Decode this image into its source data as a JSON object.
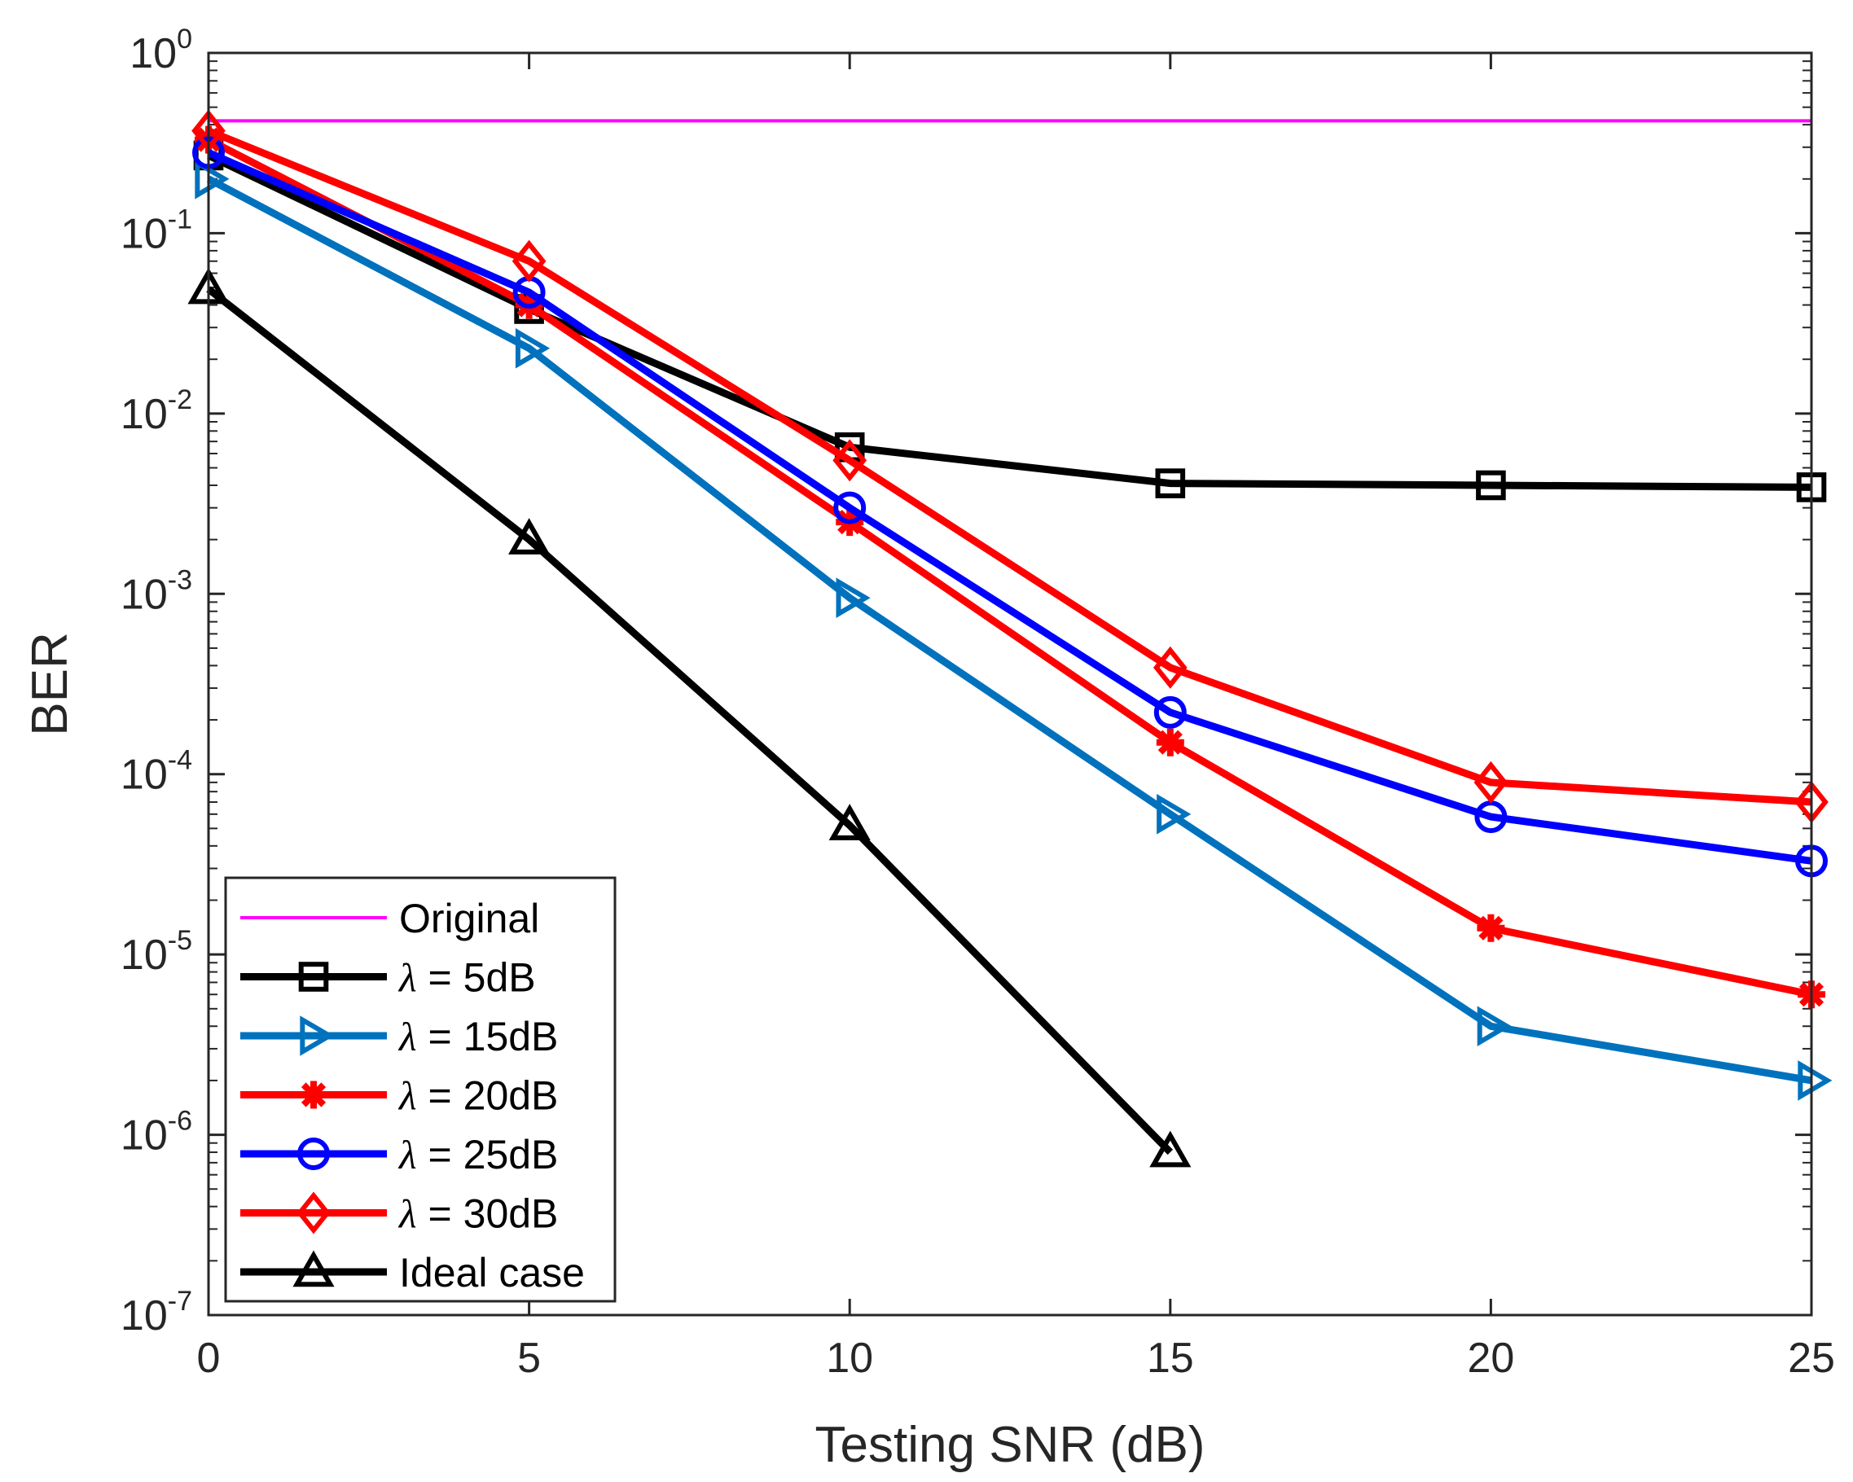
{
  "chart_data": {
    "type": "line",
    "title": "",
    "xlabel": "Testing SNR (dB)",
    "ylabel": "BER",
    "x": [
      0,
      5,
      10,
      15,
      20,
      25
    ],
    "xlim": [
      0,
      25
    ],
    "ylim": [
      1e-07,
      1
    ],
    "yscale": "log",
    "x_ticks": [
      "0",
      "5",
      "10",
      "15",
      "20",
      "25"
    ],
    "y_ticks": [
      {
        "base": "10",
        "exp": "0"
      },
      {
        "base": "10",
        "exp": "-1"
      },
      {
        "base": "10",
        "exp": "-2"
      },
      {
        "base": "10",
        "exp": "-3"
      },
      {
        "base": "10",
        "exp": "-4"
      },
      {
        "base": "10",
        "exp": "-5"
      },
      {
        "base": "10",
        "exp": "-6"
      },
      {
        "base": "10",
        "exp": "-7"
      }
    ],
    "legend_position": "bottom-left",
    "series": [
      {
        "name": "Original",
        "label": "Original",
        "color": "#ff00ff",
        "marker": "none",
        "width": "thin",
        "values": [
          0.42,
          0.42,
          0.42,
          0.42,
          0.42,
          0.42
        ]
      },
      {
        "name": "lambda-5dB",
        "lambda_symbol": "λ",
        "label_rest": " = 5dB",
        "color": "#000000",
        "marker": "square",
        "width": "thick",
        "values": [
          0.27,
          0.038,
          0.0065,
          0.0041,
          0.004,
          0.0039
        ]
      },
      {
        "name": "lambda-15dB",
        "lambda_symbol": "λ",
        "label_rest": " = 15dB",
        "color": "#0072bd",
        "marker": "triangle-right",
        "width": "thick",
        "values": [
          0.2,
          0.023,
          0.00095,
          6e-05,
          4e-06,
          2e-06
        ]
      },
      {
        "name": "lambda-20dB",
        "lambda_symbol": "λ",
        "label_rest": " = 20dB",
        "color": "#ff0000",
        "marker": "asterisk",
        "width": "thick",
        "values": [
          0.33,
          0.04,
          0.0025,
          0.00015,
          1.4e-05,
          6e-06
        ]
      },
      {
        "name": "lambda-25dB",
        "lambda_symbol": "λ",
        "label_rest": " = 25dB",
        "color": "#0000ff",
        "marker": "circle",
        "width": "thick",
        "values": [
          0.28,
          0.047,
          0.003,
          0.00022,
          5.8e-05,
          3.3e-05
        ]
      },
      {
        "name": "lambda-30dB",
        "lambda_symbol": "λ",
        "label_rest": " = 30dB",
        "color": "#ff0000",
        "marker": "diamond",
        "width": "thick",
        "values": [
          0.37,
          0.07,
          0.0055,
          0.00039,
          9e-05,
          7e-05
        ]
      },
      {
        "name": "Ideal case",
        "label": "Ideal case",
        "color": "#000000",
        "marker": "triangle-up",
        "width": "thick",
        "values": [
          0.049,
          0.002,
          5.2e-05,
          8e-07,
          null,
          null
        ]
      }
    ]
  }
}
